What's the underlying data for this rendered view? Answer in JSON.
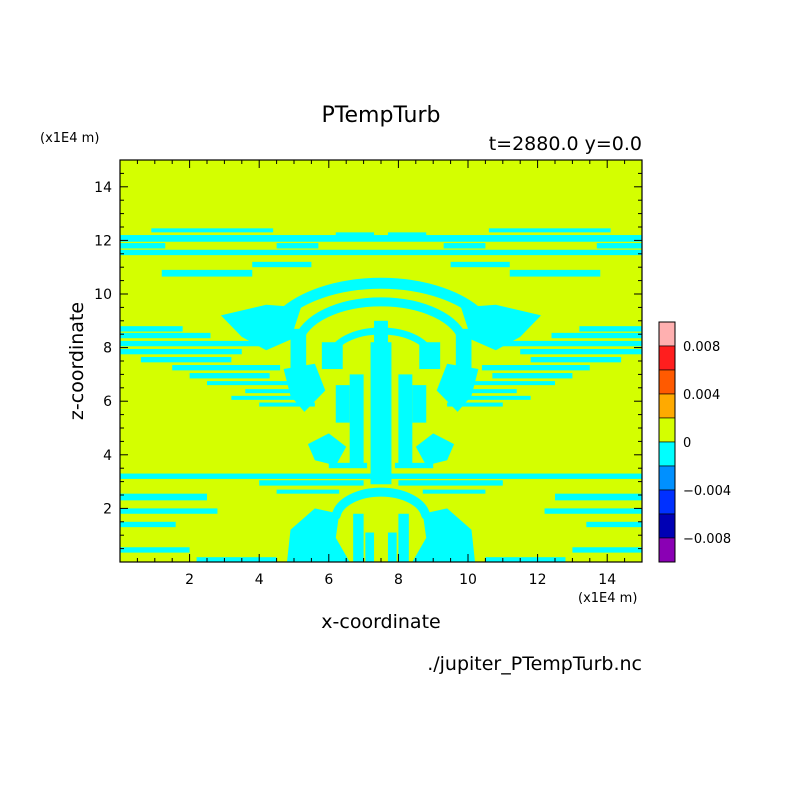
{
  "chart_data": {
    "type": "contour",
    "title": "PTempTurb",
    "subtitle": "t=2880.0 y=0.0",
    "xlabel": "x-coordinate",
    "ylabel": "z-coordinate",
    "x_unit": "(x1E4 m)",
    "y_unit": "(x1E4 m)",
    "xlim": [
      0,
      15
    ],
    "ylim": [
      0,
      15
    ],
    "x_ticks": [
      2,
      4,
      6,
      8,
      10,
      12,
      14
    ],
    "y_ticks": [
      2,
      4,
      6,
      8,
      10,
      12,
      14
    ],
    "background_level": "0 to 0.002",
    "colorbar": {
      "levels": [
        {
          "range": [
            0.008,
            0.01
          ],
          "color": "#ffb0b0"
        },
        {
          "range": [
            0.006,
            0.008
          ],
          "color": "#ff1e1e"
        },
        {
          "range": [
            0.004,
            0.006
          ],
          "color": "#ff5a00"
        },
        {
          "range": [
            0.002,
            0.004
          ],
          "color": "#ffaa00"
        },
        {
          "range": [
            0.0,
            0.002
          ],
          "color": "#d4ff00"
        },
        {
          "range": [
            -0.002,
            0.0
          ],
          "color": "#00ffff"
        },
        {
          "range": [
            -0.004,
            -0.002
          ],
          "color": "#0090ff"
        },
        {
          "range": [
            -0.006,
            -0.004
          ],
          "color": "#0030ff"
        },
        {
          "range": [
            -0.008,
            -0.006
          ],
          "color": "#0000b4"
        },
        {
          "range": [
            -0.01,
            -0.008
          ],
          "color": "#8a00b4"
        }
      ],
      "tick_values": [
        0.008,
        0.004,
        0,
        -0.004,
        -0.008
      ],
      "tick_labels": [
        "0.008",
        "0.004",
        "0",
        "−0.004",
        "−0.008"
      ]
    },
    "negative_regions": [
      {
        "type": "band",
        "x": [
          0,
          15
        ],
        "z": [
          11.9,
          12.2
        ]
      },
      {
        "type": "band",
        "x": [
          0,
          15
        ],
        "z": [
          11.4,
          11.65
        ]
      },
      {
        "type": "band",
        "x": [
          0,
          2.5
        ],
        "z": [
          2.3,
          2.55
        ]
      },
      {
        "type": "band",
        "x": [
          12.5,
          15
        ],
        "z": [
          2.3,
          2.55
        ]
      },
      {
        "type": "band",
        "x": [
          0,
          2
        ],
        "z": [
          0.35,
          0.55
        ]
      },
      {
        "type": "band",
        "x": [
          13,
          15
        ],
        "z": [
          0.35,
          0.55
        ]
      },
      {
        "type": "cap-arch",
        "center_x": 7.5,
        "z": [
          7.5,
          10.5
        ]
      },
      {
        "type": "stem",
        "center_x": 7.5,
        "z": [
          3,
          8.5
        ]
      },
      {
        "type": "base",
        "center_x": 7.5,
        "z": [
          0,
          3.3
        ]
      },
      {
        "type": "side-streaks",
        "x": [
          0,
          5
        ],
        "z": [
          5.5,
          8.6
        ]
      },
      {
        "type": "side-streaks",
        "x": [
          10,
          15
        ],
        "z": [
          5.5,
          8.6
        ]
      }
    ],
    "source_file": "./jupiter_PTempTurb.nc"
  }
}
